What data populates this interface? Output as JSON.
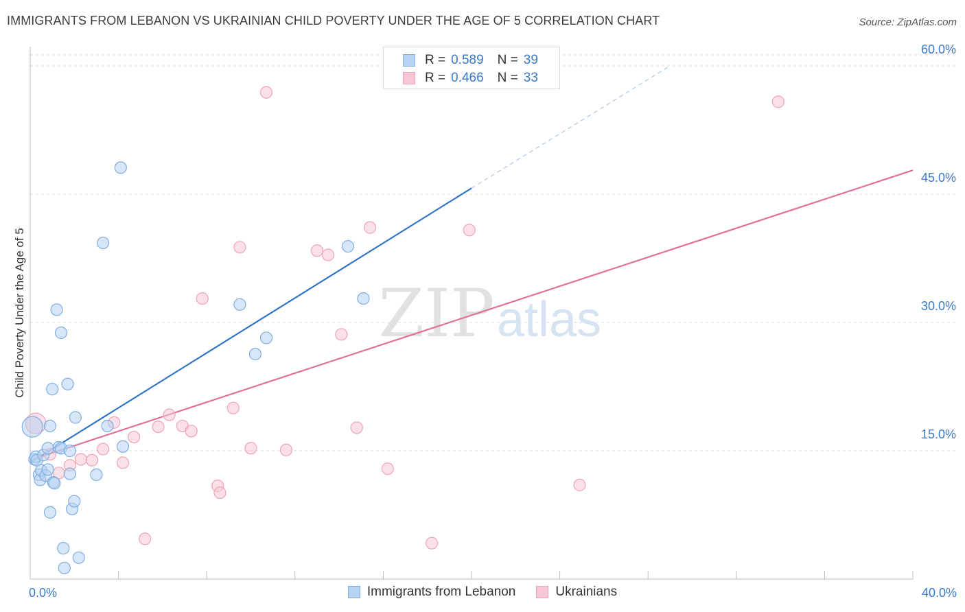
{
  "header": {
    "title": "IMMIGRANTS FROM LEBANON VS UKRAINIAN CHILD POVERTY UNDER THE AGE OF 5 CORRELATION CHART",
    "source": "Source: ZipAtlas.com"
  },
  "watermark": {
    "zip": "ZIP",
    "atlas": "atlas"
  },
  "colors": {
    "blue_fill": "#b7d2f2",
    "blue_stroke": "#7eaee0",
    "blue_line": "#2f74c8",
    "pink_fill": "#f8c6d4",
    "pink_stroke": "#eea3b8",
    "pink_line": "#e0709a",
    "tick_label": "#3a79c8",
    "grid": "#dcdcdc"
  },
  "legend": {
    "series": [
      {
        "r_label": "R =",
        "r_value": "0.589",
        "n_label": "N =",
        "n_value": "39"
      },
      {
        "r_label": "R =",
        "r_value": "0.466",
        "n_label": "N =",
        "n_value": "33"
      }
    ],
    "bottom": [
      "Immigrants from Lebanon",
      "Ukrainians"
    ]
  },
  "chart_data": {
    "type": "scatter",
    "title": "IMMIGRANTS FROM LEBANON VS UKRAINIAN CHILD POVERTY UNDER THE AGE OF 5 CORRELATION CHART",
    "xlabel": "",
    "ylabel": "Child Poverty Under the Age of 5",
    "xlim": [
      0,
      40
    ],
    "ylim": [
      0,
      60
    ],
    "x_tick_labels": [
      "0.0%",
      "40.0%"
    ],
    "y_ticks": [
      15,
      30,
      45,
      60
    ],
    "y_tick_labels": [
      "15.0%",
      "30.0%",
      "45.0%",
      "60.0%"
    ],
    "grid": true,
    "legend_position": "top-center",
    "series": [
      {
        "name": "Immigrants from Lebanon",
        "color": "#7eaee0",
        "points": [
          [
            0.1,
            17.8
          ],
          [
            0.2,
            14.0
          ],
          [
            0.25,
            14.3
          ],
          [
            0.3,
            13.9
          ],
          [
            0.4,
            12.2
          ],
          [
            0.45,
            11.6
          ],
          [
            0.5,
            12.7
          ],
          [
            0.6,
            14.5
          ],
          [
            0.7,
            12.1
          ],
          [
            0.8,
            12.8
          ],
          [
            0.8,
            15.3
          ],
          [
            0.9,
            17.9
          ],
          [
            0.9,
            7.8
          ],
          [
            1.0,
            22.2
          ],
          [
            1.05,
            11.3
          ],
          [
            1.1,
            11.2
          ],
          [
            1.2,
            31.5
          ],
          [
            1.3,
            15.4
          ],
          [
            1.4,
            15.3
          ],
          [
            1.4,
            28.8
          ],
          [
            1.5,
            3.6
          ],
          [
            1.55,
            1.3
          ],
          [
            1.7,
            22.8
          ],
          [
            1.8,
            12.3
          ],
          [
            1.8,
            15.0
          ],
          [
            1.9,
            8.2
          ],
          [
            2.0,
            9.1
          ],
          [
            2.05,
            18.9
          ],
          [
            2.2,
            2.5
          ],
          [
            3.0,
            12.2
          ],
          [
            3.3,
            39.3
          ],
          [
            3.5,
            17.9
          ],
          [
            4.1,
            48.1
          ],
          [
            4.2,
            15.5
          ],
          [
            9.5,
            32.1
          ],
          [
            10.2,
            26.3
          ],
          [
            10.7,
            28.2
          ],
          [
            14.4,
            38.9
          ],
          [
            15.1,
            32.8
          ]
        ],
        "trend": {
          "x": [
            0,
            20
          ],
          "y": [
            13.6,
            45.7
          ],
          "dashed_extension": {
            "x": [
              20,
              29.0
            ],
            "y": [
              45.7,
              60.0
            ]
          }
        }
      },
      {
        "name": "Ukrainians",
        "color": "#eea3b8",
        "points": [
          [
            0.25,
            18.2
          ],
          [
            0.9,
            14.6
          ],
          [
            1.3,
            12.4
          ],
          [
            1.8,
            13.3
          ],
          [
            2.3,
            14.0
          ],
          [
            2.8,
            13.9
          ],
          [
            3.3,
            15.2
          ],
          [
            3.8,
            18.3
          ],
          [
            4.2,
            13.6
          ],
          [
            4.7,
            16.6
          ],
          [
            5.2,
            4.7
          ],
          [
            5.8,
            17.8
          ],
          [
            6.3,
            19.2
          ],
          [
            6.9,
            17.9
          ],
          [
            7.3,
            17.3
          ],
          [
            7.8,
            32.8
          ],
          [
            8.5,
            10.9
          ],
          [
            8.6,
            10.1
          ],
          [
            9.2,
            20.0
          ],
          [
            9.5,
            38.8
          ],
          [
            10.0,
            15.3
          ],
          [
            10.7,
            56.9
          ],
          [
            11.6,
            15.1
          ],
          [
            13.0,
            38.4
          ],
          [
            13.5,
            37.9
          ],
          [
            14.1,
            28.6
          ],
          [
            14.8,
            17.7
          ],
          [
            15.4,
            41.1
          ],
          [
            16.2,
            12.9
          ],
          [
            18.2,
            4.2
          ],
          [
            19.9,
            40.8
          ],
          [
            24.9,
            11.0
          ],
          [
            33.9,
            55.8
          ]
        ],
        "trend": {
          "x": [
            0,
            40
          ],
          "y": [
            13.9,
            47.8
          ]
        }
      }
    ]
  }
}
